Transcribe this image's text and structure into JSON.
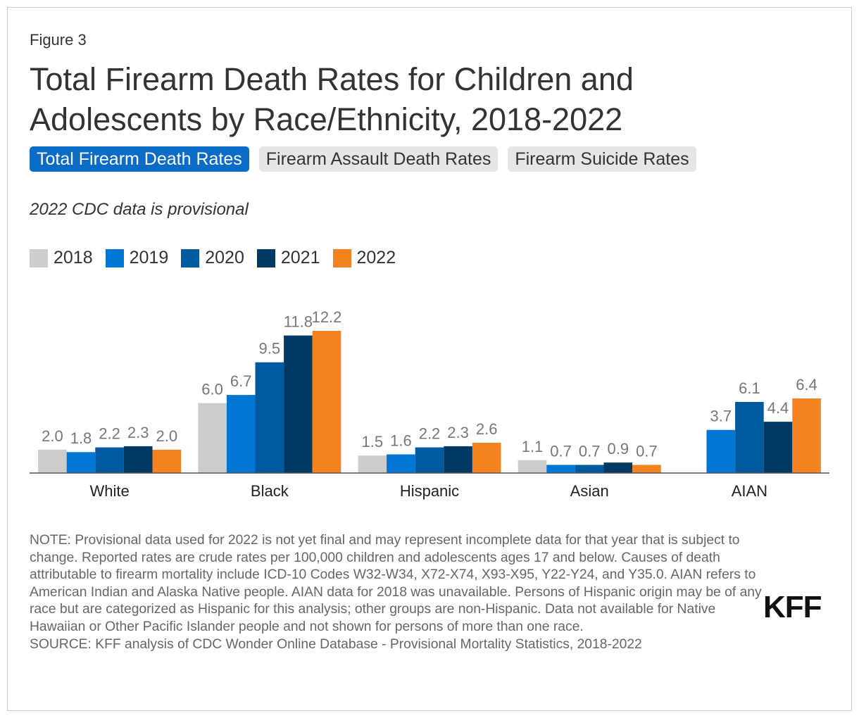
{
  "figure_label": "Figure 3",
  "tabs": [
    "Total Firearm Death Rates",
    "Firearm Assault Death Rates",
    "Firearm Suicide Rates"
  ],
  "chart_data": {
    "type": "bar",
    "title": "Total Firearm Death Rates for Children and Adolescents by Race/Ethnicity, 2018-2022",
    "subtitle": "2022 CDC data is provisional",
    "categories": [
      "White",
      "Black",
      "Hispanic",
      "Asian",
      "AIAN"
    ],
    "series": [
      {
        "name": "2018",
        "color": "#cccccc",
        "values": [
          2.0,
          6.0,
          1.5,
          1.1,
          null
        ],
        "value_labels": [
          "2.0",
          "6.0",
          "1.5",
          "1.1",
          null
        ]
      },
      {
        "name": "2019",
        "color": "#0077d4",
        "values": [
          1.8,
          6.7,
          1.6,
          0.7,
          3.7
        ],
        "value_labels": [
          "1.8",
          "6.7",
          "1.6",
          "0.7",
          "3.7"
        ]
      },
      {
        "name": "2020",
        "color": "#005aa0",
        "values": [
          2.2,
          9.5,
          2.2,
          0.7,
          6.1
        ],
        "value_labels": [
          "2.2",
          "9.5",
          "2.2",
          "0.7",
          "6.1"
        ]
      },
      {
        "name": "2021",
        "color": "#003a64",
        "values": [
          2.3,
          11.8,
          2.3,
          0.9,
          4.4
        ],
        "value_labels": [
          "2.3",
          "11.8",
          "2.3",
          "0.9",
          "4.4"
        ]
      },
      {
        "name": "2022",
        "color": "#f58220",
        "values": [
          2.0,
          12.2,
          2.6,
          0.7,
          6.4
        ],
        "value_labels": [
          "2.0",
          "12.2",
          "2.6",
          "0.7",
          "6.4"
        ]
      }
    ]
  },
  "note": "NOTE: Provisional data used for 2022 is not yet final and may represent incomplete data for that year that is subject to change. Reported rates are crude rates per 100,000 children and adolescents ages 17 and below. Causes of death attributable to firearm mortality include ICD-10 Codes W32-W34, X72-X74, X93-X95, Y22-Y24, and Y35.0. AIAN refers to American Indian and Alaska Native people. AIAN data for 2018 was unavailable. Persons of Hispanic origin may be of any race but are categorized as Hispanic for this analysis; other groups are non-Hispanic. Data not available for Native Hawaiian or Other Pacific Islander people and not shown for persons of more than one race.",
  "source": "SOURCE: KFF analysis of CDC Wonder Online Database - Provisional Mortality Statistics, 2018-2022",
  "logo": "KFF"
}
